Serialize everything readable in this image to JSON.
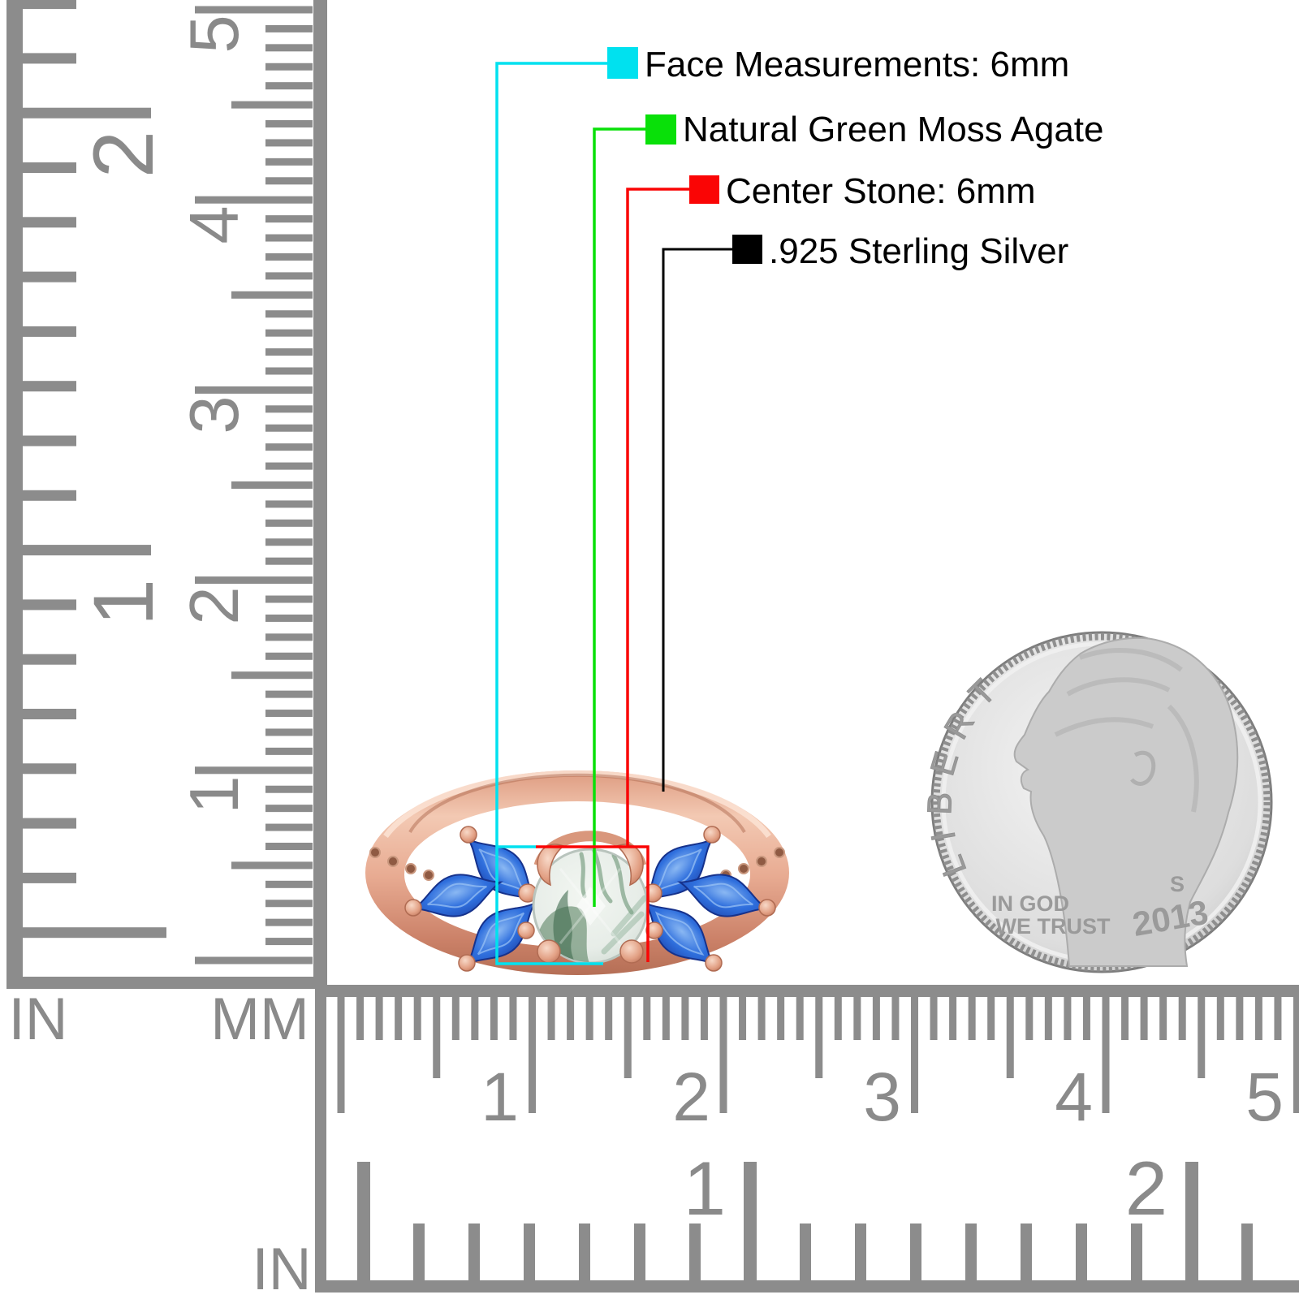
{
  "annotations": {
    "items": [
      {
        "label": "Face Measurements: 6mm",
        "color": "#00e1ef"
      },
      {
        "label": "Natural Green Moss Agate",
        "color": "#09e009"
      },
      {
        "label": "Center Stone: 6mm",
        "color": "#fa0505"
      },
      {
        "label": ".925 Sterling Silver",
        "color": "#000000"
      }
    ],
    "text_color": "#000000"
  },
  "rulers": {
    "tick_color": "#8c8c8c",
    "label_color": "#8a8a8a",
    "left_inch": {
      "unit": "IN",
      "numbers": [
        "2",
        "1"
      ]
    },
    "left_mm": {
      "unit": "MM",
      "numbers": [
        "5",
        "4",
        "3",
        "2",
        "1"
      ]
    },
    "bottom_mm": {
      "numbers": [
        "1",
        "2",
        "3",
        "4",
        "5"
      ]
    },
    "bottom_inch": {
      "unit": "IN",
      "numbers": [
        "1",
        "2"
      ]
    }
  },
  "ring": {
    "band_color": "#e2a084",
    "band_dark": "#b96f55",
    "band_light": "#f8d9c8",
    "stone_blue": "#2f6fdd",
    "stone_blue_dark": "#1c41a8",
    "stone_blue_light": "#8ab8f3",
    "agate_base": "#e7ede8",
    "moss_green": "#4d7a57"
  },
  "coin": {
    "legend": "LIBERTY",
    "motto_line1": "IN GOD",
    "motto_line2": "WE TRUST",
    "mint_mark": "S",
    "date": "2013",
    "face_color": "#e3e3e3",
    "text_color": "#9a9a9a"
  }
}
